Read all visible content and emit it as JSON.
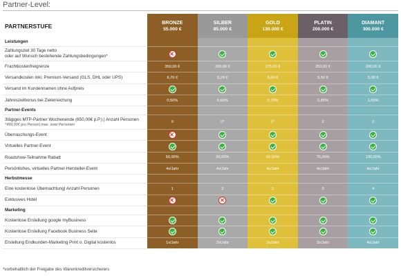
{
  "page_heading": "Partner-Level:",
  "table_title": "PARTNERSTUFE",
  "tiers": [
    {
      "name": "BRONZE",
      "price": "55.000 €",
      "header_color": "#8d5f27",
      "cell_color": "#8d5f27"
    },
    {
      "name": "SILBER",
      "price": "85.000 €",
      "header_color": "#999999",
      "cell_color": "#a9a9a9"
    },
    {
      "name": "GOLD",
      "price": "130.000 €",
      "header_color": "#c9a414",
      "cell_color": "#dfc03a"
    },
    {
      "name": "PLATIN",
      "price": "200.000 €",
      "header_color": "#6a6065",
      "cell_color": "#a79fa2"
    },
    {
      "name": "DIAMANT",
      "price": "300.000 €",
      "header_color": "#4d97a1",
      "cell_color": "#7fb9c0"
    }
  ],
  "rows": [
    {
      "type": "section",
      "label": "Leistungen"
    },
    {
      "type": "row",
      "label": "Zahlungsziel 30 Tage netto\noder auf Wunsch bestehende Zahlungsbedingungen*",
      "values": [
        "cross",
        "check",
        "check",
        "check",
        "check"
      ]
    },
    {
      "type": "row",
      "label": "Frachtkostenfreigrenze",
      "values": [
        "350,00 €",
        "300,00 €",
        "275,00 €",
        "250,00 €",
        "200,00 €"
      ]
    },
    {
      "type": "row",
      "label": "Versandkosten inkl. Premium-Versand (GLS, DHL oder UPS)",
      "values": [
        "6,70 €",
        "6,20 €",
        "6,00 €",
        "5,50 €",
        "5,00 €"
      ]
    },
    {
      "type": "row",
      "label": "Versand im Kundennamen ohne Aufpreis",
      "values": [
        "check",
        "check",
        "check",
        "check",
        "check"
      ]
    },
    {
      "type": "row",
      "label": "Jahreszielbonus bei Zielerreichung",
      "values": [
        "0,50%",
        "0,60%",
        "0,70%",
        "0,85%",
        "1,00%"
      ]
    },
    {
      "type": "section",
      "label": "Partner-Events"
    },
    {
      "type": "row",
      "label": "3tägiges MTP-Partner Wochenende (650,00€ p.P.) | Anzahl Personen",
      "note": "*499,00€ pro Person| max. zwei Personen",
      "values": [
        "0",
        "0*",
        "1*",
        "2",
        "2"
      ]
    },
    {
      "type": "row",
      "label": "Überraschungs-Event",
      "values": [
        "cross",
        "check",
        "check",
        "check",
        "check"
      ]
    },
    {
      "type": "row",
      "label": "Virtuelles Partner-Event",
      "values": [
        "check",
        "check",
        "check",
        "check",
        "check"
      ]
    },
    {
      "type": "row",
      "label": "Roadshow-Teilnahme Rabatt",
      "values": [
        "50,00%",
        "50,00%",
        "50,00%",
        "75,00%",
        "100,00%"
      ]
    },
    {
      "type": "row",
      "label": "Persönliches, virtuelles Partner-Hersteller-Event",
      "values": [
        "4x/Jahr",
        "4x/Jahr",
        "4x/Jahr",
        "4x/Jahr",
        "4x/Jahr"
      ]
    },
    {
      "type": "section",
      "label": "Herbstmesse"
    },
    {
      "type": "row",
      "label": "Eine kostenlose Übernachtung| Anzahl Personen",
      "values": [
        "1",
        "2",
        "2",
        "3",
        "4"
      ]
    },
    {
      "type": "row",
      "label": "Exklusives Hotel",
      "values": [
        "cross",
        "cross",
        "check",
        "check",
        "check"
      ]
    },
    {
      "type": "section",
      "label": "Marketing"
    },
    {
      "type": "row",
      "label": "Kostenlose Erstellung google myBusiness",
      "values": [
        "check",
        "check",
        "check",
        "check",
        "check"
      ]
    },
    {
      "type": "row",
      "label": "Kostenlose Erstellung Facebook Business Seite",
      "values": [
        "check",
        "check",
        "check",
        "check",
        "check"
      ]
    },
    {
      "type": "row",
      "label": "Erstellung Endkunden-Marketing Print o. Digital kostenlos",
      "values": [
        "1x/Jahr",
        "2x/Jahr",
        "2x/Jahr",
        "3x/Jahr",
        "4x/Jahr"
      ]
    }
  ],
  "footnote": "*vorbehaltlich der Freigabe des Warenkreditversicherers"
}
